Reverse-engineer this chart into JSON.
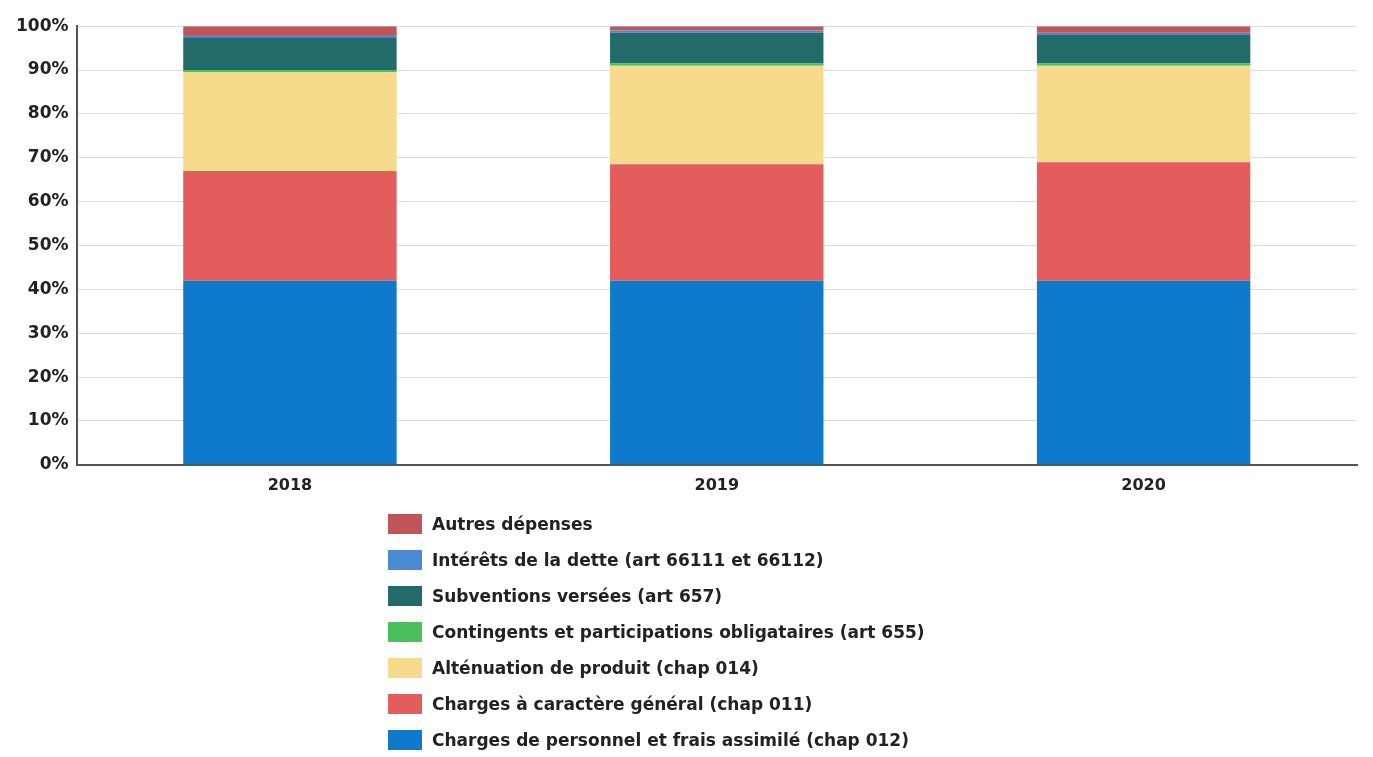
{
  "chart_data": {
    "type": "bar",
    "stacked": true,
    "categories": [
      "2018",
      "2019",
      "2020"
    ],
    "ylim": [
      0,
      100
    ],
    "yticks": [
      {
        "value": 0,
        "label": "0%"
      },
      {
        "value": 10,
        "label": "10%"
      },
      {
        "value": 20,
        "label": "20%"
      },
      {
        "value": 30,
        "label": "30%"
      },
      {
        "value": 40,
        "label": "40%"
      },
      {
        "value": 50,
        "label": "50%"
      },
      {
        "value": 60,
        "label": "60%"
      },
      {
        "value": 70,
        "label": "70%"
      },
      {
        "value": 80,
        "label": "80%"
      },
      {
        "value": 90,
        "label": "90%"
      },
      {
        "value": 100,
        "label": "100%"
      }
    ],
    "grid": "y",
    "legend": "bottom",
    "series": [
      {
        "name": "Charges de personnel et frais assimilé (chap 012)",
        "color": "#0f7acb",
        "values": [
          42,
          42,
          42
        ]
      },
      {
        "name": "Charges à caractère général (chap 011)",
        "color": "#e35d5d",
        "values": [
          25,
          26.5,
          27
        ]
      },
      {
        "name": "Alténuation de produit (chap 014)",
        "color": "#f7da8c",
        "values": [
          22.5,
          22.5,
          22
        ]
      },
      {
        "name": "Contingents et participations obligataires (art 655)",
        "color": "#4cbf5e",
        "values": [
          0.5,
          0.5,
          0.5
        ]
      },
      {
        "name": "Subventions versées (art 657)",
        "color": "#236b69",
        "values": [
          7.5,
          7,
          6.5
        ]
      },
      {
        "name": "Intérêts de la dette (art 66111 et 66112)",
        "color": "#4a8ad4",
        "values": [
          0.5,
          0.5,
          0.5
        ]
      },
      {
        "name": "Autres dépenses",
        "color": "#c05456",
        "values": [
          2,
          1,
          1.5
        ]
      }
    ]
  }
}
